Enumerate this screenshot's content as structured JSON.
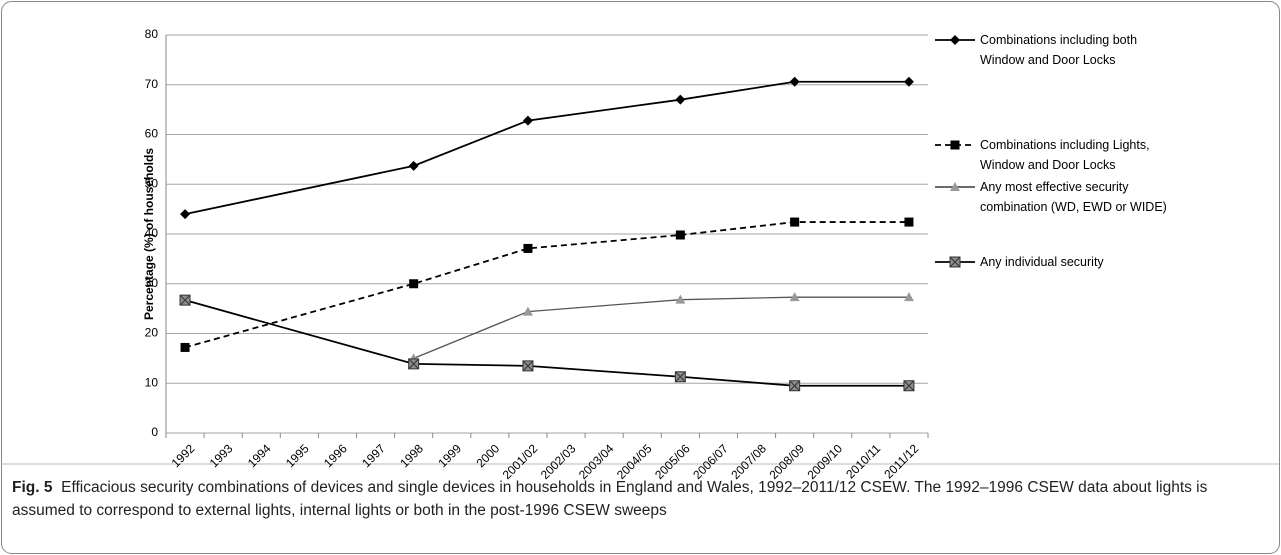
{
  "chart_data": {
    "type": "line",
    "categories": [
      "1992",
      "1993",
      "1994",
      "1995",
      "1996",
      "1997",
      "1998",
      "1999",
      "2000",
      "2001/02",
      "2002/03",
      "2003/04",
      "2004/05",
      "2005/06",
      "2006/07",
      "2007/08",
      "2008/09",
      "2009/10",
      "2010/11",
      "2011/12"
    ],
    "y_label": "Percentage (%) of households",
    "ylim": [
      0,
      80
    ],
    "yticks": [
      0,
      10,
      20,
      30,
      40,
      50,
      60,
      70,
      80
    ],
    "grid": true,
    "legend": "right",
    "series": [
      {
        "name": "Combinations including both Window and Door Locks",
        "color": "#000000",
        "dash": false,
        "marker": "diamond",
        "marker_color": "#000000",
        "x": [
          "1992",
          "1998",
          "2001/02",
          "2005/06",
          "2008/09",
          "2011/12"
        ],
        "values": [
          44,
          53.7,
          62.8,
          67,
          70.6,
          70.6
        ]
      },
      {
        "name": "Combinations including Lights, Window and Door Locks",
        "color": "#000000",
        "dash": true,
        "marker": "square",
        "marker_color": "#000000",
        "x": [
          "1992",
          "1998",
          "2001/02",
          "2005/06",
          "2008/09",
          "2011/12"
        ],
        "values": [
          17.2,
          30,
          37.1,
          39.8,
          42.4,
          42.4
        ]
      },
      {
        "name": "Any most effective security combination (WD, EWD or WIDE)",
        "color": "#555555",
        "dash": false,
        "marker": "triangle",
        "marker_color": "#999999",
        "x": [
          "1998",
          "2001/02",
          "2005/06",
          "2008/09",
          "2011/12"
        ],
        "values": [
          15,
          24.4,
          26.8,
          27.3,
          27.3
        ]
      },
      {
        "name": "Any individual security",
        "color": "#000000",
        "dash": false,
        "marker": "xsquare",
        "marker_color": "#8c8c8c",
        "x": [
          "1992",
          "1998",
          "2001/02",
          "2005/06",
          "2008/09",
          "2011/12"
        ],
        "values": [
          26.7,
          13.9,
          13.5,
          11.3,
          9.5,
          9.5
        ]
      }
    ]
  },
  "caption": {
    "label": "Fig. 5",
    "text": "Efficacious security combinations of devices and single devices in households in England and Wales, 1992–2011/12 CSEW. The 1992–1996 CSEW data about lights is assumed to correspond to external lights, internal lights or both in the post-1996 CSEW sweeps"
  }
}
